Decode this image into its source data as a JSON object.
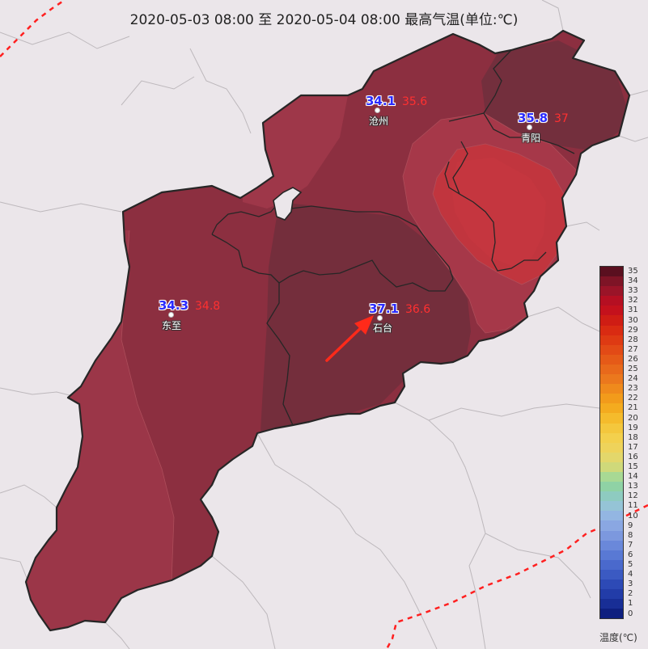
{
  "title": "2020-05-03 08:00 至 2020-05-04 08:00 最高气温(单位:℃)",
  "stations": [
    {
      "name": "沧州",
      "obs": "34.1",
      "max": "35.6"
    },
    {
      "name": "青阳",
      "obs": "35.8",
      "max": "37"
    },
    {
      "name": "东至",
      "obs": "34.3",
      "max": "34.8"
    },
    {
      "name": "石台",
      "obs": "37.1",
      "max": "36.6"
    }
  ],
  "colors": {
    "background": "#ebe6ea",
    "zone_34": "#9b3648",
    "zone_35": "#8c2f40",
    "zone_36": "#732f3d",
    "zone_hot_outer": "#a8394a",
    "zone_hot_core": "#c1353e",
    "boundary": "#262626",
    "arrow": "#ff2a1a",
    "dashed_border": "#ff2020"
  },
  "legend": {
    "title": "温度(℃)",
    "levels": [
      "35",
      "34",
      "33",
      "32",
      "31",
      "30",
      "29",
      "28",
      "27",
      "26",
      "25",
      "24",
      "23",
      "22",
      "21",
      "20",
      "19",
      "18",
      "17",
      "16",
      "15",
      "14",
      "13",
      "12",
      "11",
      "10",
      "9",
      "8",
      "7",
      "6",
      "5",
      "4",
      "3",
      "2",
      "1",
      "0"
    ],
    "colors": [
      "#5a0f1f",
      "#7e1426",
      "#9a1428",
      "#b50f22",
      "#c4111c",
      "#cf1d14",
      "#d92b12",
      "#de3a13",
      "#e24a16",
      "#e55a18",
      "#e8691b",
      "#eb781d",
      "#ef8a1c",
      "#f29b1b",
      "#f4ab1f",
      "#f5bb2c",
      "#f4c73d",
      "#f3d04d",
      "#eed35b",
      "#e3d76b",
      "#cfd97a",
      "#a8d994",
      "#8fd2a5",
      "#8ecbc0",
      "#95c4d6",
      "#93b6e2",
      "#8aa7e2",
      "#7c98de",
      "#6a88da",
      "#5979d4",
      "#4a69cc",
      "#3b5ac2",
      "#2d4ab6",
      "#223ca8",
      "#182e96",
      "#0e1f7f"
    ]
  }
}
